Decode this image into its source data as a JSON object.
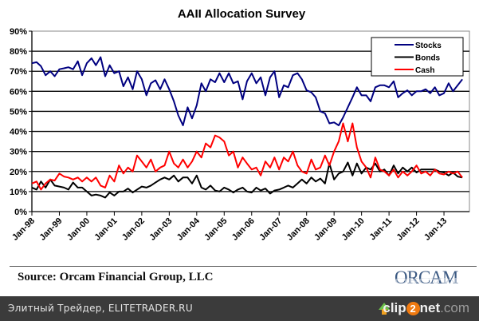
{
  "chart_data": {
    "type": "line",
    "title": "AAII Allocation Survey",
    "xlabel": "",
    "ylabel": "",
    "ylim": [
      0,
      90
    ],
    "yticks": [
      "0%",
      "10%",
      "20%",
      "30%",
      "40%",
      "50%",
      "60%",
      "70%",
      "80%",
      "90%"
    ],
    "ytick_values": [
      0,
      10,
      20,
      30,
      40,
      50,
      60,
      70,
      80,
      90
    ],
    "xticks": [
      "Jan-98",
      "Jan-99",
      "Jan-00",
      "Jan-01",
      "Jan-02",
      "Jan-03",
      "Jan-04",
      "Jan-05",
      "Jan-06",
      "Jan-07",
      "Jan-08",
      "Jan-09",
      "Jan-10",
      "Jan-11",
      "Jan-12",
      "Jan-13"
    ],
    "xtick_values": [
      1998,
      1999,
      2000,
      2001,
      2002,
      2003,
      2004,
      2005,
      2006,
      2007,
      2008,
      2009,
      2010,
      2011,
      2012,
      2013
    ],
    "xlim": [
      1998,
      2014.0
    ],
    "grid": true,
    "legend_position": "top-right",
    "x": [
      1998.0,
      1998.17,
      1998.33,
      1998.5,
      1998.67,
      1998.83,
      1999.0,
      1999.17,
      1999.33,
      1999.5,
      1999.67,
      1999.83,
      2000.0,
      2000.17,
      2000.33,
      2000.5,
      2000.67,
      2000.83,
      2001.0,
      2001.17,
      2001.33,
      2001.5,
      2001.67,
      2001.83,
      2002.0,
      2002.17,
      2002.33,
      2002.5,
      2002.67,
      2002.83,
      2003.0,
      2003.17,
      2003.33,
      2003.5,
      2003.67,
      2003.83,
      2004.0,
      2004.17,
      2004.33,
      2004.5,
      2004.67,
      2004.83,
      2005.0,
      2005.17,
      2005.33,
      2005.5,
      2005.67,
      2005.83,
      2006.0,
      2006.17,
      2006.33,
      2006.5,
      2006.67,
      2006.83,
      2007.0,
      2007.17,
      2007.33,
      2007.5,
      2007.67,
      2007.83,
      2008.0,
      2008.17,
      2008.33,
      2008.5,
      2008.67,
      2008.83,
      2009.0,
      2009.17,
      2009.33,
      2009.5,
      2009.67,
      2009.83,
      2010.0,
      2010.17,
      2010.33,
      2010.5,
      2010.67,
      2010.83,
      2011.0,
      2011.17,
      2011.33,
      2011.5,
      2011.67,
      2011.83,
      2012.0,
      2012.17,
      2012.33,
      2012.5,
      2012.67,
      2012.83,
      2013.0,
      2013.17,
      2013.33,
      2013.5,
      2013.67
    ],
    "series": [
      {
        "name": "Stocks",
        "color": "#000080",
        "values": [
          74,
          74.5,
          72.5,
          68,
          70,
          67.5,
          71,
          71.5,
          72,
          71,
          75,
          68,
          74,
          76.5,
          73,
          77,
          67.5,
          73,
          69,
          70,
          62.5,
          67,
          61,
          70,
          66,
          58,
          64,
          65.5,
          61,
          66,
          61,
          55,
          48,
          43,
          52,
          46.5,
          53,
          64,
          60,
          66,
          64.5,
          69,
          64.5,
          69,
          64,
          65,
          56,
          65,
          69,
          64,
          67,
          58,
          67,
          70,
          57,
          63,
          62,
          68,
          69,
          66,
          60.5,
          59.5,
          57,
          50,
          49,
          44,
          44.5,
          43,
          47,
          52,
          57,
          62,
          58,
          58,
          55,
          62,
          63,
          63,
          62,
          65,
          57,
          59,
          60.5,
          58,
          60,
          60,
          61,
          59,
          62,
          58,
          59,
          64,
          60,
          63,
          66
        ]
      },
      {
        "name": "Bonds",
        "color": "#000000",
        "values": [
          12,
          11,
          15,
          12,
          16,
          13,
          12.5,
          12,
          11,
          14.5,
          12,
          12,
          10,
          8,
          8.5,
          8,
          7,
          9.5,
          8,
          10,
          10,
          11.5,
          9.5,
          11,
          12.5,
          12,
          13,
          14.5,
          16,
          17,
          16,
          18,
          15,
          17,
          17,
          14,
          18,
          12,
          11,
          13,
          10.5,
          10,
          12,
          11,
          9.5,
          11,
          12,
          10,
          9.5,
          12,
          10.5,
          11.5,
          9,
          10.5,
          11,
          12,
          13,
          12,
          14,
          16,
          14,
          17,
          15,
          16.5,
          14,
          24,
          16,
          19,
          20,
          24.5,
          18,
          24,
          19,
          22,
          21,
          24,
          20,
          21,
          18,
          23,
          19,
          22,
          20,
          22,
          19.5,
          21,
          21,
          21,
          21,
          20,
          19.5,
          18,
          19.5,
          17.5,
          17
        ]
      },
      {
        "name": "Cash",
        "color": "#ff0000",
        "values": [
          14,
          15,
          11,
          14,
          16,
          15.5,
          19,
          17.5,
          17,
          16,
          17,
          15,
          17,
          15,
          17,
          13,
          12,
          18,
          15,
          23,
          19,
          22,
          20,
          28,
          25,
          22,
          26,
          20,
          22,
          23,
          30,
          24,
          22,
          26,
          22,
          25,
          30,
          27,
          34,
          32,
          38,
          37,
          35,
          28,
          30,
          22,
          27,
          24,
          21,
          22,
          18,
          25,
          22,
          27,
          21,
          27,
          25,
          30,
          23,
          20,
          19,
          26,
          21,
          22,
          28,
          23,
          30,
          35,
          44,
          35,
          44,
          32,
          25,
          22,
          17,
          27,
          21,
          20,
          18,
          21,
          17,
          20,
          18,
          20,
          23,
          19,
          20,
          18,
          21,
          19,
          18.5,
          20,
          19,
          20,
          17
        ]
      }
    ]
  },
  "source_text": "Source: Orcam Financial Group, LLC",
  "logo_text": "ORCAM",
  "footer": {
    "site_text": "Элитный Трейдер, ELITETRADER.RU",
    "clip_brand_a": "clip",
    "clip_brand_2": "2",
    "clip_brand_b": "net",
    "clip_brand_dom": ".com"
  }
}
